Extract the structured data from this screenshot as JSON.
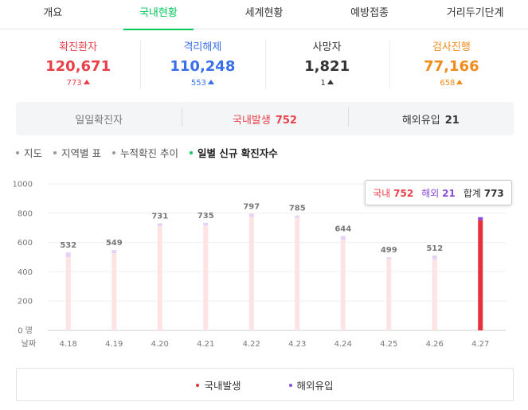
{
  "tabs": [
    {
      "label": "개요"
    },
    {
      "label": "국내현황"
    },
    {
      "label": "세계현황"
    },
    {
      "label": "예방접종"
    },
    {
      "label": "거리두기단계"
    }
  ],
  "stats": [
    {
      "label": "확진환자",
      "value": "120,671",
      "delta": "773",
      "color": "#e8404a"
    },
    {
      "label": "격리해제",
      "value": "110,248",
      "delta": "553",
      "color": "#3a6fe8"
    },
    {
      "label": "사망자",
      "value": "1,821",
      "delta": "1",
      "color": "#333333"
    },
    {
      "label": "검사진행",
      "value": "77,166",
      "delta": "658",
      "color": "#f08c1e"
    }
  ],
  "daily": {
    "label": "일일확진자",
    "domestic_label": "국내발생",
    "domestic_value": "752",
    "overseas_label": "해외유입",
    "overseas_value": "21"
  },
  "submenu": [
    {
      "label": "지도"
    },
    {
      "label": "지역별 표"
    },
    {
      "label": "누적확진 추이"
    },
    {
      "label": "일별 신규 확진자수"
    }
  ],
  "tooltip": {
    "domestic_label": "국내",
    "domestic_value": "752",
    "overseas_label": "해외",
    "overseas_value": "21",
    "total_label": "합계",
    "total_value": "773"
  },
  "legend": [
    {
      "label": "국내발생",
      "color": "#e8303a"
    },
    {
      "label": "해외유입",
      "color": "#8a4fd8"
    }
  ],
  "chart_data": {
    "type": "bar",
    "stacked": true,
    "categories": [
      "4.18",
      "4.19",
      "4.20",
      "4.21",
      "4.22",
      "4.23",
      "4.24",
      "4.25",
      "4.26",
      "4.27"
    ],
    "series": [
      {
        "name": "국내발생",
        "values": [
          500,
          527,
          711,
          716,
          774,
          770,
          618,
          487,
          486,
          752
        ],
        "color": "#fde3e3",
        "highlight_color": "#e8303a"
      },
      {
        "name": "해외유입",
        "values": [
          32,
          22,
          20,
          19,
          23,
          15,
          26,
          12,
          26,
          21
        ],
        "color": "#e4d2f8",
        "highlight_color": "#8a4fd8"
      }
    ],
    "totals": [
      532,
      549,
      731,
      735,
      797,
      785,
      644,
      499,
      512,
      773
    ],
    "highlight_index": 9,
    "ylim": [
      0,
      1000
    ],
    "yticks": [
      "0 명",
      "200",
      "400",
      "600",
      "800",
      "1000"
    ],
    "xlabel": "날짜",
    "grid": true
  }
}
